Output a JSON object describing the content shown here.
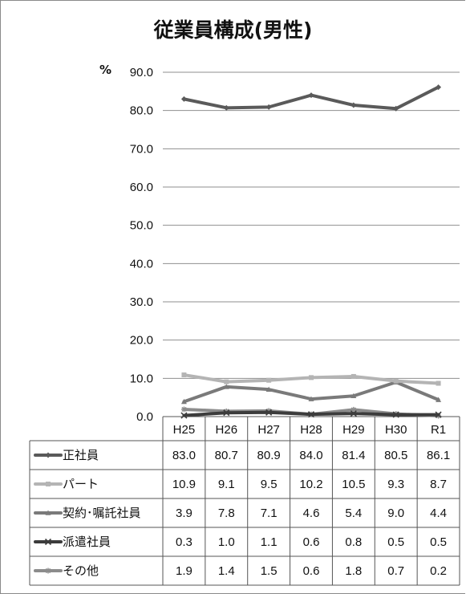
{
  "chart_data": {
    "type": "line",
    "title": "従業員構成(男性)",
    "ylabel": "%",
    "ylim": [
      0,
      90
    ],
    "yticks": [
      0,
      10,
      20,
      30,
      40,
      50,
      60,
      70,
      80,
      90
    ],
    "ytick_labels": [
      "0.0",
      "10.0",
      "20.0",
      "30.0",
      "40.0",
      "50.0",
      "60.0",
      "70.0",
      "80.0",
      "90.0"
    ],
    "categories": [
      "H25",
      "H26",
      "H27",
      "H28",
      "H29",
      "H30",
      "R1"
    ],
    "grid": true,
    "legend": "data-table-below",
    "series": [
      {
        "name": "正社員",
        "color": "#5a5a5a",
        "marker": "diamond",
        "values": [
          83.0,
          80.7,
          80.9,
          84.0,
          81.4,
          80.5,
          86.1
        ],
        "labels": [
          "83.0",
          "80.7",
          "80.9",
          "84.0",
          "81.4",
          "80.5",
          "86.1"
        ]
      },
      {
        "name": "パート",
        "color": "#b4b4b4",
        "marker": "square",
        "values": [
          10.9,
          9.1,
          9.5,
          10.2,
          10.5,
          9.3,
          8.7
        ],
        "labels": [
          "10.9",
          "9.1",
          "9.5",
          "10.2",
          "10.5",
          "9.3",
          "8.7"
        ]
      },
      {
        "name": "契約･嘱託社員",
        "color": "#7a7a7a",
        "marker": "triangle",
        "values": [
          3.9,
          7.8,
          7.1,
          4.6,
          5.4,
          9.0,
          4.4
        ],
        "labels": [
          "3.9",
          "7.8",
          "7.1",
          "4.6",
          "5.4",
          "9.0",
          "4.4"
        ]
      },
      {
        "name": "派遣社員",
        "color": "#3c3c3c",
        "marker": "x",
        "values": [
          0.3,
          1.0,
          1.1,
          0.6,
          0.8,
          0.5,
          0.5
        ],
        "labels": [
          "0.3",
          "1.0",
          "1.1",
          "0.6",
          "0.8",
          "0.5",
          "0.5"
        ]
      },
      {
        "name": "その他",
        "color": "#8c8c8c",
        "marker": "star",
        "values": [
          1.9,
          1.4,
          1.5,
          0.6,
          1.8,
          0.7,
          0.2
        ],
        "labels": [
          "1.9",
          "1.4",
          "1.5",
          "0.6",
          "1.8",
          "0.7",
          "0.2"
        ]
      }
    ]
  }
}
